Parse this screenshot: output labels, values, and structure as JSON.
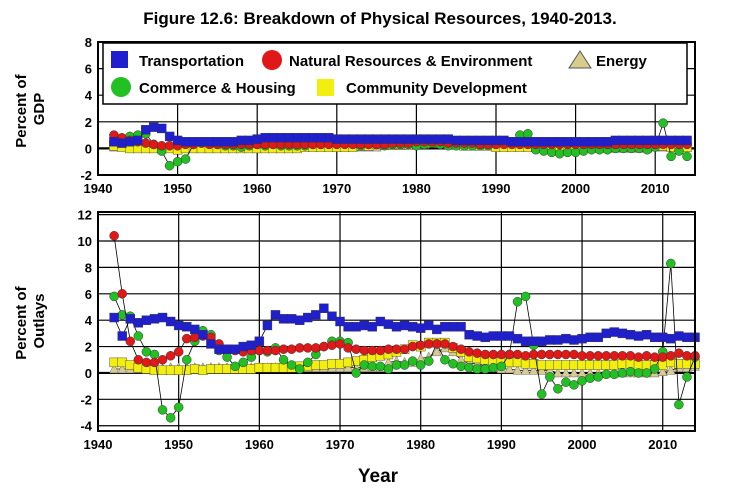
{
  "title": "Figure 12.6: Breakdown of Physical Resources, 1940-2013.",
  "xlabel": "Year",
  "legend": [
    {
      "name": "Transportation",
      "marker": "square",
      "color": "#1f1fd0"
    },
    {
      "name": "Natural Resources & Environment",
      "marker": "circle",
      "color": "#e01818"
    },
    {
      "name": "Energy",
      "marker": "triangle",
      "color": "#d8cc8c"
    },
    {
      "name": "Commerce & Housing",
      "marker": "circle",
      "color": "#22c022"
    },
    {
      "name": "Community Development",
      "marker": "square",
      "color": "#f2ee10"
    }
  ],
  "chart_data": [
    {
      "type": "line",
      "panel": "top",
      "ylabel": [
        "Percent of",
        "GDP"
      ],
      "xlim": [
        1940,
        2015
      ],
      "ylim": [
        -2,
        8
      ],
      "xticks": [
        1940,
        1950,
        1960,
        1970,
        1980,
        1990,
        2000,
        2010
      ],
      "yticks": [
        -2,
        0,
        2,
        4,
        6,
        8
      ],
      "grid": true,
      "legend_position": "top",
      "x_start": 1942,
      "series": [
        {
          "name": "Transportation",
          "values": [
            0.5,
            0.4,
            0.5,
            0.6,
            1.4,
            1.6,
            1.5,
            0.9,
            0.6,
            0.5,
            0.5,
            0.5,
            0.5,
            0.5,
            0.5,
            0.5,
            0.6,
            0.6,
            0.7,
            0.8,
            0.8,
            0.8,
            0.8,
            0.8,
            0.8,
            0.8,
            0.8,
            0.8,
            0.7,
            0.7,
            0.7,
            0.7,
            0.7,
            0.7,
            0.7,
            0.7,
            0.7,
            0.7,
            0.7,
            0.7,
            0.7,
            0.7,
            0.7,
            0.6,
            0.6,
            0.6,
            0.6,
            0.6,
            0.6,
            0.6,
            0.5,
            0.5,
            0.5,
            0.5,
            0.5,
            0.5,
            0.5,
            0.5,
            0.5,
            0.5,
            0.5,
            0.5,
            0.5,
            0.6,
            0.6,
            0.6,
            0.6,
            0.6,
            0.6,
            0.6,
            0.6,
            0.6,
            0.6
          ]
        },
        {
          "name": "Natural Resources & Environment",
          "values": [
            1.0,
            0.8,
            0.6,
            0.5,
            0.4,
            0.3,
            0.2,
            0.2,
            0.2,
            0.3,
            0.3,
            0.4,
            0.3,
            0.3,
            0.3,
            0.3,
            0.3,
            0.3,
            0.3,
            0.3,
            0.3,
            0.3,
            0.3,
            0.3,
            0.3,
            0.3,
            0.3,
            0.3,
            0.3,
            0.3,
            0.3,
            0.3,
            0.3,
            0.3,
            0.3,
            0.4,
            0.4,
            0.4,
            0.5,
            0.5,
            0.5,
            0.5,
            0.4,
            0.4,
            0.4,
            0.4,
            0.3,
            0.3,
            0.3,
            0.3,
            0.3,
            0.3,
            0.3,
            0.3,
            0.3,
            0.3,
            0.3,
            0.3,
            0.3,
            0.3,
            0.3,
            0.3,
            0.3,
            0.3,
            0.3,
            0.3,
            0.3,
            0.3,
            0.3,
            0.3,
            0.3,
            0.3,
            0.3
          ]
        },
        {
          "name": "Energy",
          "values": [
            0.1,
            0.1,
            0.1,
            0.1,
            0.1,
            0.1,
            0.1,
            0.1,
            0.1,
            0.1,
            0.1,
            0.1,
            0.1,
            0.1,
            0.1,
            0.1,
            0.1,
            0.1,
            0.1,
            0.1,
            0.1,
            0.1,
            0.1,
            0.1,
            0.1,
            0.1,
            0.1,
            0.1,
            0.1,
            0.1,
            0.1,
            0.1,
            0.1,
            0.1,
            0.2,
            0.2,
            0.2,
            0.2,
            0.3,
            0.3,
            0.4,
            0.4,
            0.4,
            0.3,
            0.3,
            0.2,
            0.2,
            0.2,
            0.1,
            0.1,
            0.1,
            0.1,
            0.1,
            0.1,
            0.1,
            0.0,
            0.0,
            0.0,
            0.0,
            0.0,
            0.0,
            0.0,
            0.0,
            0.0,
            0.0,
            0.0,
            0.0,
            0.0,
            0.1,
            0.1,
            0.1,
            0.1,
            0.1
          ]
        },
        {
          "name": "Commerce & Housing",
          "values": [
            0.5,
            0.7,
            0.9,
            1.0,
            1.1,
            0.3,
            -0.2,
            -1.3,
            -1.0,
            -0.8,
            0.3,
            0.4,
            0.4,
            0.3,
            0.2,
            0.2,
            0.1,
            0.2,
            0.3,
            0.2,
            0.3,
            0.2,
            0.2,
            0.2,
            0.2,
            0.3,
            0.3,
            0.4,
            0.5,
            0.4,
            0.4,
            0.2,
            0.3,
            0.3,
            0.2,
            0.3,
            0.3,
            0.3,
            0.2,
            0.3,
            0.4,
            0.3,
            0.2,
            0.2,
            0.2,
            0.2,
            0.2,
            0.2,
            0.3,
            0.4,
            0.5,
            1.0,
            1.1,
            -0.1,
            -0.2,
            -0.3,
            -0.4,
            -0.3,
            -0.3,
            -0.2,
            -0.1,
            -0.1,
            -0.1,
            0.0,
            0.0,
            0.0,
            0.0,
            -0.1,
            0.1,
            1.9,
            -0.6,
            -0.2,
            -0.6
          ]
        },
        {
          "name": "Community Development",
          "values": [
            0.2,
            0.1,
            0.0,
            0.0,
            0.0,
            0.0,
            0.0,
            0.0,
            -0.1,
            0.0,
            0.0,
            0.0,
            0.0,
            0.0,
            0.0,
            0.0,
            0.0,
            0.0,
            0.0,
            0.0,
            0.0,
            0.0,
            0.0,
            0.0,
            0.1,
            0.1,
            0.1,
            0.1,
            0.1,
            0.1,
            0.1,
            0.2,
            0.2,
            0.3,
            0.3,
            0.3,
            0.3,
            0.4,
            0.4,
            0.4,
            0.4,
            0.4,
            0.3,
            0.3,
            0.2,
            0.2,
            0.2,
            0.2,
            0.1,
            0.1,
            0.1,
            0.1,
            0.1,
            0.1,
            0.1,
            0.1,
            0.1,
            0.1,
            0.1,
            0.1,
            0.1,
            0.1,
            0.1,
            0.1,
            0.1,
            0.1,
            0.1,
            0.1,
            0.2,
            0.2,
            0.1,
            0.1,
            0.1
          ]
        }
      ]
    },
    {
      "type": "line",
      "panel": "bottom",
      "ylabel": [
        "Percent of",
        "Outlays"
      ],
      "xlim": [
        1940,
        2014
      ],
      "ylim": [
        -4.4,
        12.2
      ],
      "xticks": [
        1940,
        1950,
        1960,
        1970,
        1980,
        1990,
        2000,
        2010
      ],
      "yticks": [
        -4,
        -2,
        0,
        2,
        4,
        6,
        8,
        10,
        12
      ],
      "grid": true,
      "x_start": 1942,
      "series": [
        {
          "name": "Transportation",
          "values": [
            4.2,
            2.8,
            4.1,
            3.8,
            4.0,
            4.1,
            4.2,
            3.9,
            3.6,
            3.5,
            3.3,
            2.9,
            2.2,
            1.8,
            1.8,
            1.8,
            2.0,
            2.1,
            2.4,
            3.6,
            4.4,
            4.1,
            4.1,
            4.0,
            4.2,
            4.4,
            4.9,
            4.3,
            3.9,
            3.5,
            3.5,
            3.6,
            3.5,
            3.9,
            3.7,
            3.5,
            3.6,
            3.5,
            3.4,
            3.6,
            3.3,
            3.5,
            3.5,
            3.5,
            2.9,
            2.8,
            2.7,
            2.8,
            2.8,
            2.8,
            2.6,
            2.4,
            2.4,
            2.4,
            2.5,
            2.5,
            2.6,
            2.5,
            2.6,
            2.7,
            2.7,
            3.0,
            3.1,
            3.0,
            2.9,
            2.8,
            2.9,
            2.7,
            2.7,
            2.6,
            2.8,
            2.7,
            2.7
          ]
        },
        {
          "name": "Natural Resources & Environment",
          "values": [
            10.4,
            6.0,
            2.4,
            1.0,
            0.8,
            0.8,
            1.0,
            1.3,
            1.6,
            2.6,
            2.7,
            2.8,
            2.7,
            2.2,
            1.8,
            1.7,
            1.6,
            1.7,
            1.7,
            1.7,
            1.7,
            1.8,
            1.8,
            1.9,
            1.9,
            1.9,
            2.0,
            2.1,
            2.2,
            1.9,
            1.8,
            1.7,
            1.7,
            1.7,
            1.8,
            1.8,
            1.8,
            2.0,
            2.1,
            2.2,
            2.2,
            2.2,
            2.0,
            1.8,
            1.6,
            1.5,
            1.4,
            1.4,
            1.4,
            1.4,
            1.4,
            1.3,
            1.4,
            1.4,
            1.4,
            1.4,
            1.4,
            1.4,
            1.3,
            1.3,
            1.3,
            1.3,
            1.3,
            1.3,
            1.3,
            1.2,
            1.3,
            1.2,
            1.2,
            1.3,
            1.5,
            1.3,
            1.3
          ]
        },
        {
          "name": "Energy",
          "values": [
            0.3,
            0.3,
            0.3,
            0.3,
            0.3,
            0.3,
            0.3,
            0.4,
            0.4,
            0.4,
            0.4,
            0.4,
            0.4,
            0.4,
            0.4,
            0.4,
            0.4,
            0.4,
            0.4,
            0.4,
            0.4,
            0.4,
            0.4,
            0.4,
            0.4,
            0.4,
            0.4,
            0.4,
            0.4,
            0.4,
            0.4,
            0.4,
            0.4,
            0.4,
            0.8,
            0.9,
            0.8,
            0.8,
            1.1,
            1.2,
            1.6,
            1.9,
            1.6,
            1.0,
            0.7,
            0.7,
            0.5,
            0.4,
            0.3,
            0.3,
            0.2,
            0.2,
            0.2,
            0.2,
            0.2,
            0.0,
            0.0,
            0.0,
            0.0,
            0.0,
            0.0,
            0.0,
            0.0,
            0.0,
            0.0,
            0.0,
            0.0,
            0.0,
            0.1,
            0.2,
            0.4,
            0.4,
            0.5
          ]
        },
        {
          "name": "Commerce & Housing",
          "values": [
            5.8,
            4.4,
            4.3,
            2.8,
            1.6,
            1.4,
            -2.8,
            -3.4,
            -2.6,
            1.0,
            2.4,
            3.2,
            2.9,
            1.7,
            1.2,
            0.5,
            0.8,
            1.2,
            1.7,
            1.6,
            1.9,
            1.0,
            0.6,
            0.3,
            0.8,
            1.4,
            2.0,
            2.4,
            2.4,
            2.3,
            0.0,
            0.6,
            0.5,
            0.5,
            0.3,
            0.6,
            0.6,
            0.9,
            0.6,
            0.9,
            2.2,
            1.0,
            0.7,
            0.5,
            0.4,
            0.3,
            0.3,
            0.4,
            0.5,
            1.4,
            5.4,
            5.8,
            2.1,
            -1.6,
            -0.3,
            -1.2,
            -0.7,
            -0.9,
            -0.6,
            -0.4,
            -0.3,
            -0.1,
            -0.1,
            0.0,
            0.1,
            0.0,
            0.0,
            0.3,
            1.6,
            8.3,
            -2.4,
            -0.3,
            1.2
          ]
        },
        {
          "name": "Community Development",
          "values": [
            0.8,
            0.8,
            0.6,
            0.4,
            0.3,
            0.2,
            0.2,
            0.2,
            0.2,
            0.2,
            0.3,
            0.2,
            0.3,
            0.3,
            0.3,
            0.3,
            0.3,
            0.3,
            0.4,
            0.4,
            0.4,
            0.4,
            0.4,
            0.5,
            0.5,
            0.6,
            0.6,
            0.7,
            0.7,
            0.8,
            0.9,
            1.0,
            1.2,
            1.3,
            1.4,
            1.6,
            1.8,
            2.1,
            2.0,
            2.3,
            2.3,
            2.3,
            1.9,
            1.6,
            1.2,
            1.1,
            1.0,
            0.9,
            0.8,
            0.8,
            0.8,
            0.7,
            0.7,
            0.6,
            0.6,
            0.6,
            0.6,
            0.6,
            0.6,
            0.6,
            0.6,
            0.6,
            0.6,
            0.7,
            0.7,
            0.6,
            0.6,
            0.6,
            0.6,
            0.8,
            0.7,
            0.7,
            0.7
          ]
        }
      ]
    }
  ]
}
